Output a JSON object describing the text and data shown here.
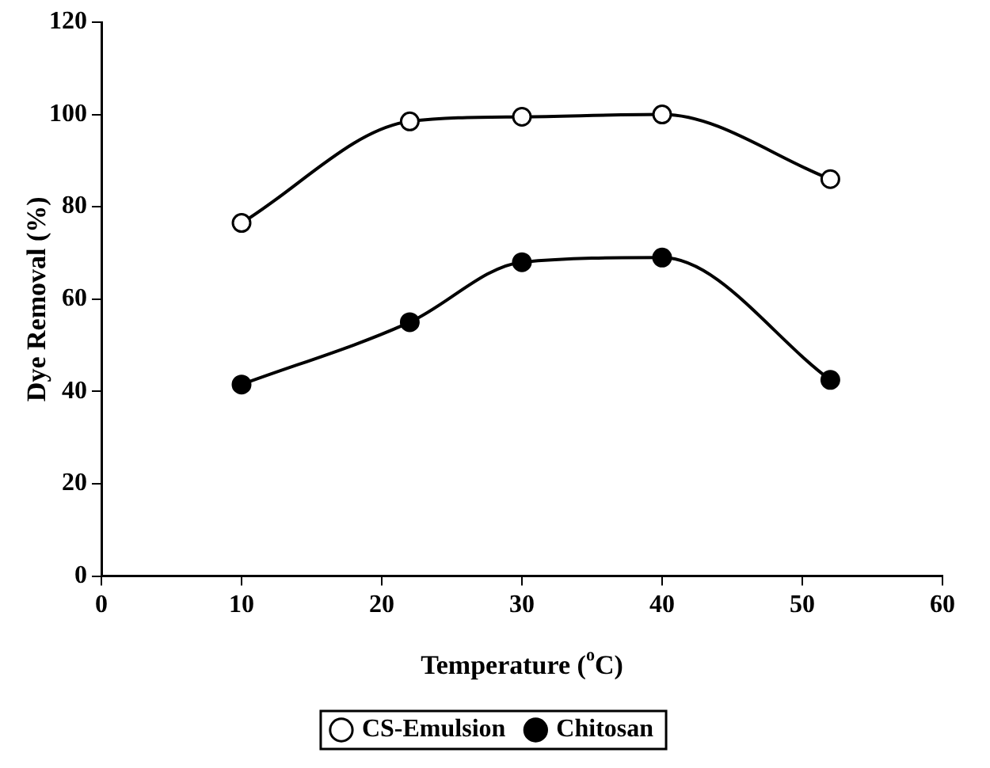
{
  "chart_data": {
    "type": "line",
    "xlabel": "Temperature ($^{o}$C)",
    "ylabel": "Dye Removal (%)",
    "x": [
      10,
      22,
      30,
      40,
      52
    ],
    "series": [
      {
        "name": "CS-Emulsion",
        "color": "#000000",
        "values": [
          76.5,
          98.5,
          99.5,
          100,
          86
        ]
      },
      {
        "name": "Chitosan",
        "color": "#000000",
        "values": [
          41.5,
          55,
          68,
          69,
          42.5
        ]
      }
    ],
    "xlim": [
      0,
      60
    ],
    "xticks": [
      0,
      10,
      20,
      30,
      40,
      50,
      60
    ],
    "ylim": [
      0,
      120
    ],
    "yticks": [
      0,
      20,
      40,
      60,
      80,
      100,
      120
    ],
    "grid": false,
    "legend": "bottom",
    "marker": "circle",
    "line_style": "solid"
  }
}
